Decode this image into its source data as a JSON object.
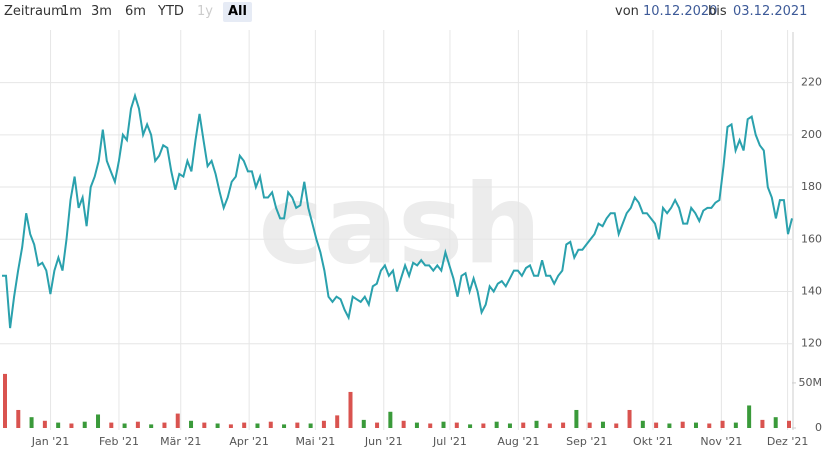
{
  "range_selector": {
    "label": "Zeitraum",
    "buttons": [
      "1m",
      "3m",
      "6m",
      "YTD",
      "1y",
      "All"
    ],
    "disabled": [
      "1y"
    ],
    "selected": "All"
  },
  "date_range": {
    "from_label": "von",
    "from": "10.12.2020",
    "to_label": "bis",
    "to": "03.12.2021"
  },
  "chart_data": [
    {
      "type": "line",
      "watermark": "cash",
      "color": "#2aa1ad",
      "xlim": [
        "2020-12-10",
        "2021-12-03"
      ],
      "xticks": [
        {
          "value": "2021-01-01",
          "label": "Jan '21"
        },
        {
          "value": "2021-02-01",
          "label": "Feb '21"
        },
        {
          "value": "2021-03-01",
          "label": "Mär '21"
        },
        {
          "value": "2021-04-01",
          "label": "Apr '21"
        },
        {
          "value": "2021-05-01",
          "label": "Mai '21"
        },
        {
          "value": "2021-06-01",
          "label": "Jun '21"
        },
        {
          "value": "2021-07-01",
          "label": "Jul '21"
        },
        {
          "value": "2021-08-01",
          "label": "Aug '21"
        },
        {
          "value": "2021-09-01",
          "label": "Sep '21"
        },
        {
          "value": "2021-10-01",
          "label": "Okt '21"
        },
        {
          "value": "2021-11-01",
          "label": "Nov '21"
        },
        {
          "value": "2021-12-01",
          "label": "Dez '21"
        }
      ],
      "ylim": [
        113,
        239
      ],
      "yticks": [
        120,
        140,
        160,
        180,
        200,
        220
      ],
      "grid": true,
      "values": [
        146,
        146,
        126,
        138,
        148,
        157,
        170,
        162,
        158,
        150,
        151,
        148,
        139,
        148,
        153,
        148,
        160,
        175,
        184,
        172,
        176,
        165,
        180,
        184,
        190,
        202,
        190,
        186,
        182,
        190,
        200,
        198,
        210,
        215,
        210,
        200,
        204,
        200,
        190,
        192,
        196,
        195,
        186,
        179,
        185,
        184,
        190,
        186,
        198,
        208,
        198,
        188,
        190,
        185,
        178,
        172,
        176,
        182,
        184,
        192,
        190,
        186,
        186,
        180,
        184,
        176,
        176,
        178,
        172,
        168,
        168,
        178,
        176,
        172,
        173,
        182,
        172,
        166,
        160,
        155,
        148,
        138,
        136,
        138,
        137,
        133,
        130,
        138,
        137,
        136,
        138,
        135,
        142,
        143,
        148,
        150,
        146,
        148,
        140,
        145,
        150,
        146,
        151,
        150,
        152,
        150,
        150,
        148,
        150,
        148,
        155,
        150,
        145,
        138,
        146,
        147,
        140,
        145,
        140,
        132,
        135,
        142,
        140,
        143,
        144,
        142,
        145,
        148,
        148,
        146,
        149,
        150,
        146,
        146,
        152,
        146,
        146,
        143,
        146,
        148,
        158,
        159,
        153,
        156,
        156,
        158,
        160,
        162,
        166,
        165,
        168,
        170,
        170,
        162,
        166,
        170,
        172,
        176,
        174,
        170,
        170,
        168,
        166,
        160,
        172,
        170,
        172,
        175,
        172,
        166,
        166,
        172,
        170,
        167,
        171,
        172,
        172,
        174,
        175,
        188,
        203,
        204,
        194,
        198,
        194,
        206,
        207,
        200,
        196,
        194,
        180,
        176,
        168,
        175,
        175,
        162,
        168
      ]
    },
    {
      "type": "bar",
      "ylim": [
        0,
        61
      ],
      "yticks": [
        0,
        {
          "value": 50,
          "label": "50M"
        }
      ],
      "values": [
        60,
        20,
        12,
        8,
        6,
        5,
        7,
        15,
        6,
        5,
        7,
        4,
        6,
        16,
        8,
        6,
        5,
        4,
        6,
        5,
        7,
        4,
        6,
        5,
        8,
        14,
        40,
        9,
        6,
        18,
        8,
        6,
        5,
        7,
        6,
        4,
        5,
        7,
        5,
        6,
        8,
        5,
        6,
        20,
        6,
        7,
        5,
        20,
        8,
        6,
        5,
        7,
        6,
        5,
        8,
        6,
        25,
        9,
        12,
        8
      ],
      "colors": [
        "#d9534f",
        "#d9534f",
        "#3a9a3a",
        "#d9534f",
        "#3a9a3a",
        "#d9534f",
        "#3a9a3a",
        "#3a9a3a",
        "#d9534f",
        "#3a9a3a",
        "#d9534f",
        "#3a9a3a",
        "#d9534f",
        "#d9534f",
        "#3a9a3a",
        "#d9534f",
        "#3a9a3a",
        "#d9534f",
        "#d9534f",
        "#3a9a3a",
        "#d9534f",
        "#3a9a3a",
        "#d9534f",
        "#3a9a3a",
        "#d9534f",
        "#d9534f",
        "#d9534f",
        "#3a9a3a",
        "#d9534f",
        "#3a9a3a",
        "#d9534f",
        "#3a9a3a",
        "#d9534f",
        "#3a9a3a",
        "#d9534f",
        "#3a9a3a",
        "#d9534f",
        "#3a9a3a",
        "#3a9a3a",
        "#d9534f",
        "#3a9a3a",
        "#d9534f",
        "#d9534f",
        "#3a9a3a",
        "#d9534f",
        "#3a9a3a",
        "#d9534f",
        "#d9534f",
        "#3a9a3a",
        "#d9534f",
        "#3a9a3a",
        "#d9534f",
        "#3a9a3a",
        "#d9534f",
        "#d9534f",
        "#3a9a3a",
        "#3a9a3a",
        "#d9534f",
        "#3a9a3a",
        "#d9534f"
      ]
    }
  ]
}
